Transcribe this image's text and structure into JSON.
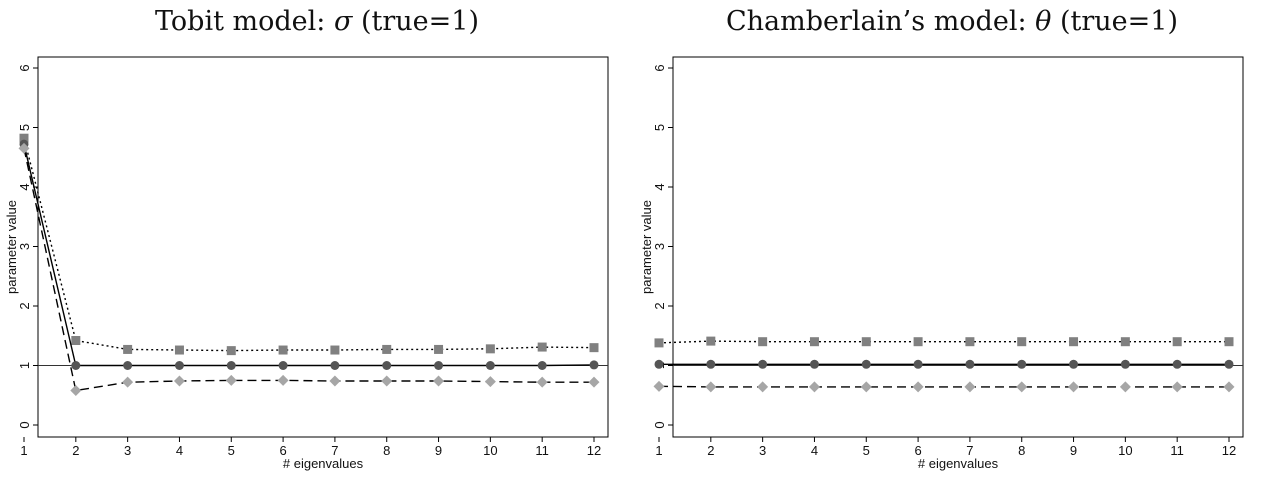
{
  "chart_data": [
    {
      "type": "line",
      "title_text": "Tobit model: ",
      "title_symbol": "σ",
      "title_suffix": " (true=1)",
      "xlabel": "# eigenvalues",
      "ylabel": "parameter value",
      "xlim": [
        1,
        12
      ],
      "ylim": [
        0,
        6
      ],
      "x": [
        1,
        2,
        3,
        4,
        5,
        6,
        7,
        8,
        9,
        10,
        11,
        12
      ],
      "yticks": [
        0,
        1,
        2,
        3,
        4,
        5,
        6
      ],
      "reference_line": 1,
      "series": [
        {
          "style": "dotted",
          "marker": "square",
          "color": "#808080",
          "values": [
            4.82,
            1.42,
            1.27,
            1.26,
            1.25,
            1.26,
            1.26,
            1.27,
            1.27,
            1.28,
            1.31,
            1.3
          ]
        },
        {
          "style": "solid",
          "marker": "circle",
          "color": "#555555",
          "values": [
            4.72,
            1.0,
            1.0,
            1.0,
            1.0,
            1.0,
            1.0,
            1.0,
            1.0,
            1.0,
            1.0,
            1.01
          ]
        },
        {
          "style": "dashed",
          "marker": "diamond",
          "color": "#a6a6a6",
          "values": [
            4.65,
            0.58,
            0.72,
            0.74,
            0.75,
            0.75,
            0.74,
            0.74,
            0.74,
            0.73,
            0.72,
            0.72
          ]
        }
      ]
    },
    {
      "type": "line",
      "title_text": "Chamberlain’s model: ",
      "title_symbol": "θ",
      "title_suffix": " (true=1)",
      "xlabel": "# eigenvalues",
      "ylabel": "parameter value",
      "xlim": [
        1,
        12
      ],
      "ylim": [
        0,
        6
      ],
      "x": [
        1,
        2,
        3,
        4,
        5,
        6,
        7,
        8,
        9,
        10,
        11,
        12
      ],
      "yticks": [
        0,
        1,
        2,
        3,
        4,
        5,
        6
      ],
      "reference_line": 1,
      "series": [
        {
          "style": "dotted",
          "marker": "square",
          "color": "#808080",
          "values": [
            1.38,
            1.41,
            1.4,
            1.4,
            1.4,
            1.4,
            1.4,
            1.4,
            1.4,
            1.4,
            1.4,
            1.4
          ]
        },
        {
          "style": "solid",
          "marker": "circle",
          "color": "#555555",
          "values": [
            1.02,
            1.02,
            1.02,
            1.02,
            1.02,
            1.02,
            1.02,
            1.02,
            1.02,
            1.02,
            1.02,
            1.02
          ]
        },
        {
          "style": "dashed",
          "marker": "diamond",
          "color": "#a6a6a6",
          "values": [
            0.65,
            0.64,
            0.64,
            0.64,
            0.64,
            0.64,
            0.64,
            0.64,
            0.64,
            0.64,
            0.64,
            0.64
          ]
        }
      ]
    }
  ]
}
